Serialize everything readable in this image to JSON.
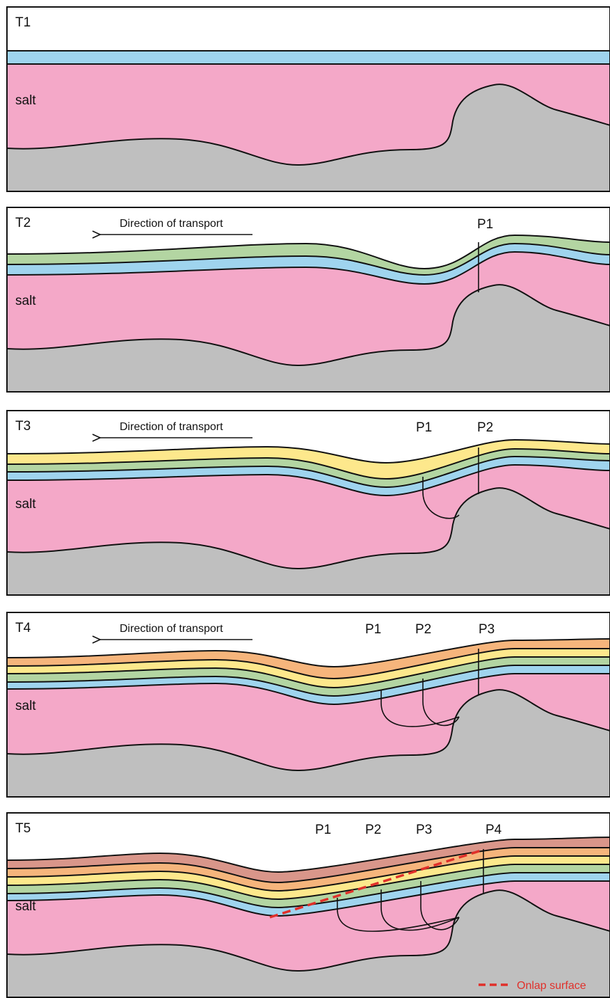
{
  "panels": [
    {
      "label": "T1",
      "salt": "salt"
    },
    {
      "label": "T2",
      "salt": "salt",
      "transport": "Direction of transport",
      "points": [
        "P1"
      ]
    },
    {
      "label": "T3",
      "salt": "salt",
      "transport": "Direction of transport",
      "points": [
        "P1",
        "P2"
      ]
    },
    {
      "label": "T4",
      "salt": "salt",
      "transport": "Direction of transport",
      "points": [
        "P1",
        "P2",
        "P3"
      ]
    },
    {
      "label": "T5",
      "salt": "salt",
      "points": [
        "P1",
        "P2",
        "P3",
        "P4"
      ]
    }
  ],
  "legend": {
    "onlap": "Onlap surface"
  }
}
